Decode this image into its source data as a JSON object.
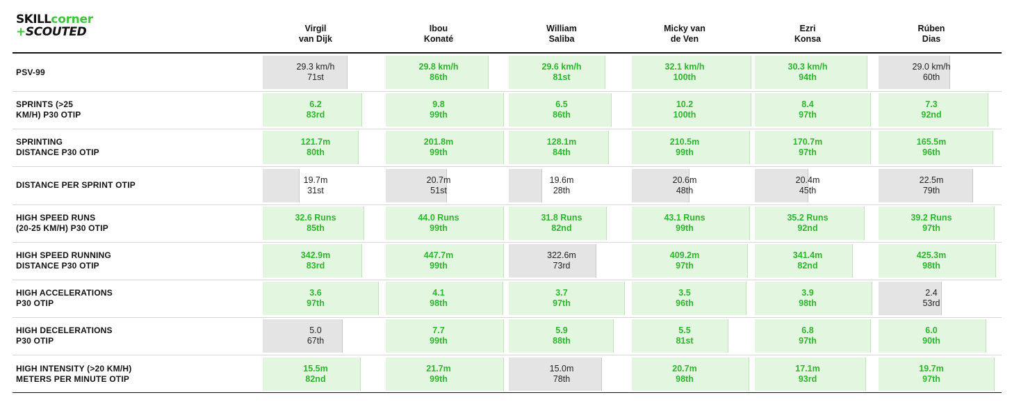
{
  "logo": {
    "skill": "SKILL",
    "corner": "corner",
    "plus": "+",
    "scouted": "SCOUTED"
  },
  "chart_data": {
    "type": "table",
    "players": [
      {
        "first": "Virgil",
        "last": "van Dijk"
      },
      {
        "first": "Ibou",
        "last": "Konaté"
      },
      {
        "first": "William",
        "last": "Saliba"
      },
      {
        "first": "Micky van",
        "last": "de Ven"
      },
      {
        "first": "Ezri",
        "last": "Konsa"
      },
      {
        "first": "Rúben",
        "last": "Dias"
      }
    ],
    "metrics": [
      {
        "label": "PSV-99",
        "cells": [
          {
            "value": "29.3 km/h",
            "rank": "71st",
            "percentile": 71
          },
          {
            "value": "29.8 km/h",
            "rank": "86th",
            "percentile": 86
          },
          {
            "value": "29.6 km/h",
            "rank": "81st",
            "percentile": 81
          },
          {
            "value": "32.1 km/h",
            "rank": "100th",
            "percentile": 100
          },
          {
            "value": "30.3 km/h",
            "rank": "94th",
            "percentile": 94
          },
          {
            "value": "29.0 km/h",
            "rank": "60th",
            "percentile": 60
          }
        ]
      },
      {
        "label": "SPRINTS (>25\nKM/H) P30 OTIP",
        "cells": [
          {
            "value": "6.2",
            "rank": "83rd",
            "percentile": 83
          },
          {
            "value": "9.8",
            "rank": "99th",
            "percentile": 99
          },
          {
            "value": "6.5",
            "rank": "86th",
            "percentile": 86
          },
          {
            "value": "10.2",
            "rank": "100th",
            "percentile": 100
          },
          {
            "value": "8.4",
            "rank": "97th",
            "percentile": 97
          },
          {
            "value": "7.3",
            "rank": "92nd",
            "percentile": 92
          }
        ]
      },
      {
        "label": "SPRINTING\nDISTANCE P30 OTIP",
        "cells": [
          {
            "value": "121.7m",
            "rank": "80th",
            "percentile": 80
          },
          {
            "value": "201.8m",
            "rank": "99th",
            "percentile": 99
          },
          {
            "value": "128.1m",
            "rank": "84th",
            "percentile": 84
          },
          {
            "value": "210.5m",
            "rank": "99th",
            "percentile": 99
          },
          {
            "value": "170.7m",
            "rank": "97th",
            "percentile": 97
          },
          {
            "value": "165.5m",
            "rank": "96th",
            "percentile": 96
          }
        ]
      },
      {
        "label": "DISTANCE PER SPRINT OTIP",
        "cells": [
          {
            "value": "19.7m",
            "rank": "31st",
            "percentile": 31
          },
          {
            "value": "20.7m",
            "rank": "51st",
            "percentile": 51
          },
          {
            "value": "19.6m",
            "rank": "28th",
            "percentile": 28
          },
          {
            "value": "20.6m",
            "rank": "48th",
            "percentile": 48
          },
          {
            "value": "20.4m",
            "rank": "45th",
            "percentile": 45
          },
          {
            "value": "22.5m",
            "rank": "79th",
            "percentile": 79
          }
        ]
      },
      {
        "label": "HIGH SPEED RUNS\n(20-25 KM/H) P30 OTIP",
        "cells": [
          {
            "value": "32.6 Runs",
            "rank": "85th",
            "percentile": 85
          },
          {
            "value": "44.0 Runs",
            "rank": "99th",
            "percentile": 99
          },
          {
            "value": "31.8 Runs",
            "rank": "82nd",
            "percentile": 82
          },
          {
            "value": "43.1 Runs",
            "rank": "99th",
            "percentile": 99
          },
          {
            "value": "35.2 Runs",
            "rank": "92nd",
            "percentile": 92
          },
          {
            "value": "39.2 Runs",
            "rank": "97th",
            "percentile": 97
          }
        ]
      },
      {
        "label": "HIGH SPEED RUNNING\nDISTANCE P30 OTIP",
        "cells": [
          {
            "value": "342.9m",
            "rank": "83rd",
            "percentile": 83
          },
          {
            "value": "447.7m",
            "rank": "99th",
            "percentile": 99
          },
          {
            "value": "322.6m",
            "rank": "73rd",
            "percentile": 73
          },
          {
            "value": "409.2m",
            "rank": "97th",
            "percentile": 97
          },
          {
            "value": "341.4m",
            "rank": "82nd",
            "percentile": 82
          },
          {
            "value": "425.3m",
            "rank": "98th",
            "percentile": 98
          }
        ]
      },
      {
        "label": "HIGH ACCELERATIONS\nP30 OTIP",
        "cells": [
          {
            "value": "3.6",
            "rank": "97th",
            "percentile": 97
          },
          {
            "value": "4.1",
            "rank": "98th",
            "percentile": 98
          },
          {
            "value": "3.7",
            "rank": "97th",
            "percentile": 97
          },
          {
            "value": "3.5",
            "rank": "96th",
            "percentile": 96
          },
          {
            "value": "3.9",
            "rank": "98th",
            "percentile": 98
          },
          {
            "value": "2.4",
            "rank": "53rd",
            "percentile": 53
          }
        ]
      },
      {
        "label": "HIGH DECELERATIONS\nP30 OTIP",
        "cells": [
          {
            "value": "5.0",
            "rank": "67th",
            "percentile": 67
          },
          {
            "value": "7.7",
            "rank": "99th",
            "percentile": 99
          },
          {
            "value": "5.9",
            "rank": "88th",
            "percentile": 88
          },
          {
            "value": "5.5",
            "rank": "81st",
            "percentile": 81
          },
          {
            "value": "6.8",
            "rank": "97th",
            "percentile": 97
          },
          {
            "value": "6.0",
            "rank": "90th",
            "percentile": 90
          }
        ]
      },
      {
        "label": "HIGH INTENSITY (>20 KM/H)\nMETERS PER MINUTE OTIP",
        "cells": [
          {
            "value": "15.5m",
            "rank": "82nd",
            "percentile": 82
          },
          {
            "value": "21.7m",
            "rank": "99th",
            "percentile": 99
          },
          {
            "value": "15.0m",
            "rank": "78th",
            "percentile": 78
          },
          {
            "value": "20.7m",
            "rank": "98th",
            "percentile": 98
          },
          {
            "value": "17.1m",
            "rank": "93rd",
            "percentile": 93
          },
          {
            "value": "19.7m",
            "rank": "97th",
            "percentile": 97
          }
        ]
      }
    ],
    "colors": {
      "elite_text": "#2db52d",
      "elite_fill": "#e3f6df",
      "normal_fill": "#e4e4e4",
      "normal_text": "#222222"
    },
    "elite_threshold": 80
  }
}
